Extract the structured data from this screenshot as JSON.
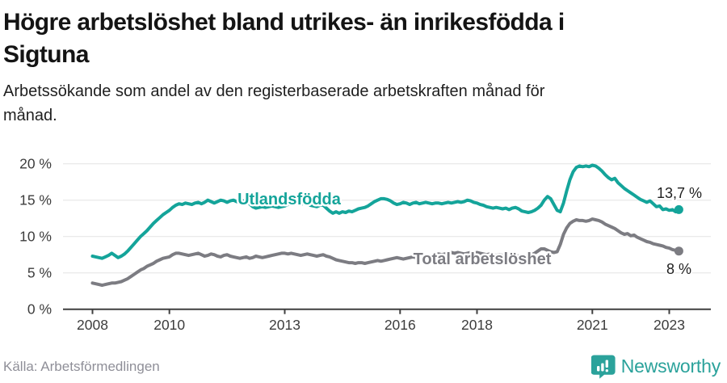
{
  "header": {
    "title_lines": [
      "Högre arbetslöshet bland utrikes- än inrikesfödda i",
      "Sigtuna"
    ],
    "subtitle_lines": [
      "Arbetssökande som andel av den registerbaserade arbetskraften månad för",
      "månad."
    ]
  },
  "footer": {
    "source": "Källa: Arbetsförmedlingen",
    "logo_text": "Newsworthy"
  },
  "colors": {
    "teal": "#14a49a",
    "gray": "#7c7c82",
    "grid": "#e4e4e4",
    "axis": "#3f3f3f",
    "tick_text": "#3c3c3c",
    "end_label_text": "#1f1f1f",
    "source_text": "#8f8f98",
    "logo_teal": "#2ba29b",
    "background": "#ffffff"
  },
  "chart_data": {
    "type": "line",
    "title": "Högre arbetslöshet bland utrikes- än inrikesfödda i Sigtuna",
    "subtitle": "Arbetssökande som andel av den registerbaserade arbetskraften månad för månad.",
    "x_unit": "month",
    "x_range": [
      "2008-01",
      "2023-04"
    ],
    "ylim": [
      0,
      21
    ],
    "grid": true,
    "legend_position": "inline-labels",
    "y_ticks": [
      {
        "value": 0,
        "label": "0 %"
      },
      {
        "value": 5,
        "label": "5 %"
      },
      {
        "value": 10,
        "label": "10 %"
      },
      {
        "value": 15,
        "label": "15 %"
      },
      {
        "value": 20,
        "label": "20 %"
      }
    ],
    "x_ticks": [
      {
        "value": 2008,
        "label": "2008"
      },
      {
        "value": 2010,
        "label": "2010"
      },
      {
        "value": 2013,
        "label": "2013"
      },
      {
        "value": 2016,
        "label": "2016"
      },
      {
        "value": 2018,
        "label": "2018"
      },
      {
        "value": 2021,
        "label": "2021"
      },
      {
        "value": 2023,
        "label": "2023"
      }
    ],
    "series": [
      {
        "name": "Utlandsfödda",
        "color": "#14a49a",
        "end_label": "13,7 %",
        "values": [
          7.3,
          7.2,
          7.1,
          7.0,
          7.2,
          7.4,
          7.7,
          7.4,
          7.1,
          7.3,
          7.6,
          8.0,
          8.5,
          9.0,
          9.5,
          10.0,
          10.4,
          10.8,
          11.3,
          11.8,
          12.2,
          12.6,
          13.0,
          13.3,
          13.6,
          14.0,
          14.3,
          14.5,
          14.4,
          14.6,
          14.5,
          14.4,
          14.6,
          14.7,
          14.5,
          14.7,
          15.0,
          14.8,
          14.6,
          14.8,
          15.0,
          14.9,
          14.7,
          14.9,
          15.0,
          14.8,
          14.7,
          14.9,
          14.8,
          14.5,
          14.1,
          13.9,
          14.0,
          14.1,
          14.0,
          14.1,
          14.2,
          14.1,
          14.0,
          14.1,
          14.2,
          14.4,
          14.5,
          14.6,
          14.5,
          14.4,
          14.6,
          14.5,
          14.3,
          14.2,
          14.1,
          14.3,
          14.3,
          13.9,
          13.5,
          13.2,
          13.4,
          13.2,
          13.4,
          13.3,
          13.5,
          13.4,
          13.6,
          13.8,
          13.9,
          14.0,
          14.2,
          14.5,
          14.8,
          15.0,
          15.2,
          15.2,
          15.1,
          14.9,
          14.6,
          14.4,
          14.5,
          14.7,
          14.6,
          14.4,
          14.6,
          14.7,
          14.5,
          14.6,
          14.7,
          14.6,
          14.5,
          14.6,
          14.6,
          14.5,
          14.6,
          14.7,
          14.6,
          14.7,
          14.8,
          14.7,
          14.8,
          15.0,
          14.9,
          14.7,
          14.6,
          14.4,
          14.3,
          14.1,
          14.0,
          13.9,
          14.0,
          13.9,
          13.8,
          13.9,
          13.7,
          13.9,
          14.0,
          13.8,
          13.5,
          13.4,
          13.3,
          13.4,
          13.6,
          13.9,
          14.3,
          15.0,
          15.5,
          15.2,
          14.4,
          13.6,
          13.4,
          14.6,
          16.3,
          17.8,
          18.9,
          19.5,
          19.7,
          19.6,
          19.7,
          19.6,
          19.8,
          19.7,
          19.4,
          19.0,
          18.5,
          18.1,
          17.8,
          18.0,
          17.4,
          17.0,
          16.6,
          16.3,
          16.0,
          15.7,
          15.4,
          15.1,
          14.9,
          14.7,
          14.9,
          14.5,
          14.1,
          14.2,
          13.7,
          13.8,
          13.6,
          13.7,
          13.4,
          13.7
        ]
      },
      {
        "name": "Total arbetslöshet",
        "color": "#7c7c82",
        "end_label": "8 %",
        "values": [
          3.6,
          3.5,
          3.4,
          3.3,
          3.4,
          3.5,
          3.6,
          3.6,
          3.7,
          3.8,
          4.0,
          4.2,
          4.5,
          4.8,
          5.1,
          5.4,
          5.6,
          5.9,
          6.1,
          6.3,
          6.6,
          6.8,
          7.0,
          7.1,
          7.2,
          7.5,
          7.7,
          7.7,
          7.6,
          7.5,
          7.4,
          7.5,
          7.6,
          7.7,
          7.5,
          7.3,
          7.4,
          7.6,
          7.5,
          7.3,
          7.2,
          7.4,
          7.5,
          7.3,
          7.2,
          7.1,
          7.0,
          7.1,
          7.2,
          7.0,
          7.1,
          7.3,
          7.2,
          7.1,
          7.2,
          7.3,
          7.4,
          7.5,
          7.6,
          7.7,
          7.7,
          7.6,
          7.7,
          7.6,
          7.5,
          7.4,
          7.5,
          7.6,
          7.5,
          7.4,
          7.3,
          7.4,
          7.5,
          7.3,
          7.2,
          7.0,
          6.8,
          6.7,
          6.6,
          6.5,
          6.4,
          6.4,
          6.3,
          6.4,
          6.4,
          6.3,
          6.4,
          6.5,
          6.6,
          6.7,
          6.6,
          6.7,
          6.8,
          6.9,
          7.0,
          7.1,
          7.0,
          6.9,
          7.0,
          7.1,
          7.2,
          7.1,
          7.0,
          7.1,
          7.2,
          7.3,
          7.4,
          7.5,
          7.6,
          7.5,
          7.6,
          7.7,
          7.8,
          7.7,
          7.8,
          7.7,
          7.6,
          7.7,
          7.8,
          7.7,
          7.8,
          7.7,
          7.6,
          7.5,
          7.6,
          7.5,
          7.4,
          7.5,
          7.4,
          7.3,
          7.2,
          7.3,
          7.4,
          7.3,
          7.2,
          7.3,
          7.4,
          7.5,
          7.7,
          8.0,
          8.3,
          8.3,
          8.1,
          7.9,
          7.8,
          7.9,
          8.9,
          10.3,
          11.2,
          11.8,
          12.1,
          12.3,
          12.2,
          12.2,
          12.1,
          12.2,
          12.4,
          12.3,
          12.2,
          12.0,
          11.7,
          11.5,
          11.3,
          11.1,
          10.8,
          10.5,
          10.3,
          10.4,
          10.1,
          10.2,
          9.9,
          9.7,
          9.5,
          9.3,
          9.2,
          9.0,
          8.9,
          8.8,
          8.7,
          8.5,
          8.4,
          8.2,
          8.1,
          8.0
        ]
      }
    ]
  }
}
